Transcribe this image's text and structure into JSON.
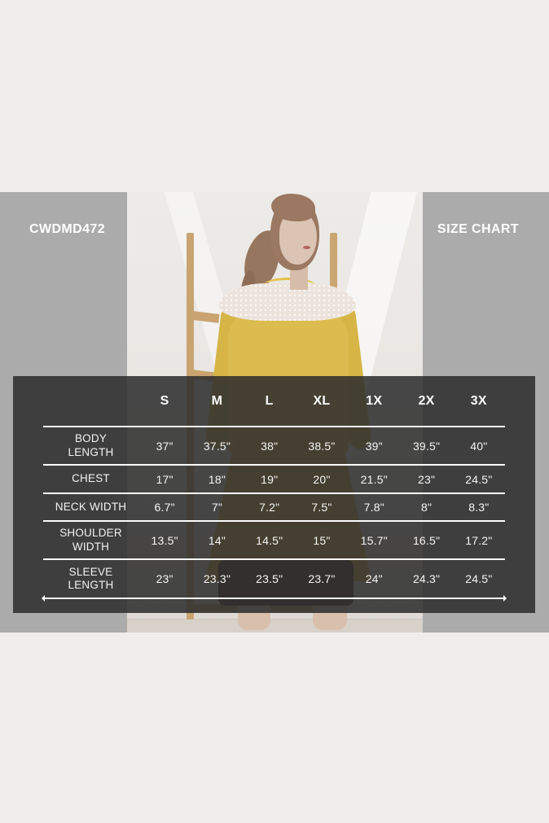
{
  "header": {
    "sku": "CWDMD472",
    "title": "SIZE CHART"
  },
  "photo": {
    "subject": "model-wearing-yellow-long-sleeve-dress-with-white-mesh-yoke",
    "props": "wooden-ladder-rack-light-studio-background"
  },
  "chart_data": {
    "type": "table",
    "title": "SIZE CHART",
    "product_code": "CWDMD472",
    "columns": [
      "S",
      "M",
      "L",
      "XL",
      "1X",
      "2X",
      "3X"
    ],
    "rows": [
      {
        "label": "BODY LENGTH",
        "values": [
          "37\"",
          "37.5\"",
          "38\"",
          "38.5\"",
          "39\"",
          "39.5\"",
          "40\""
        ]
      },
      {
        "label": "CHEST",
        "values": [
          "17\"",
          "18\"",
          "19\"",
          "20\"",
          "21.5\"",
          "23\"",
          "24.5\""
        ]
      },
      {
        "label": "NECK WIDTH",
        "values": [
          "6.7\"",
          "7\"",
          "7.2\"",
          "7.5\"",
          "7.8\"",
          "8\"",
          "8.3\""
        ]
      },
      {
        "label": "SHOULDER WIDTH",
        "values": [
          "13.5\"",
          "14\"",
          "14.5\"",
          "15\"",
          "15.7\"",
          "16.5\"",
          "17.2\""
        ]
      },
      {
        "label": "SLEEVE LENGTH",
        "values": [
          "23\"",
          "23.3\"",
          "23.5\"",
          "23.7\"",
          "24\"",
          "24.3\"",
          "24.5\""
        ]
      }
    ]
  },
  "colors": {
    "page_background": "#efeeed",
    "band_gray": "#ababab",
    "panel_overlay": "#2e2e2e",
    "table_line": "#ffffff",
    "dress_yellow": "#dcbc4f",
    "text_white": "#ffffff"
  }
}
